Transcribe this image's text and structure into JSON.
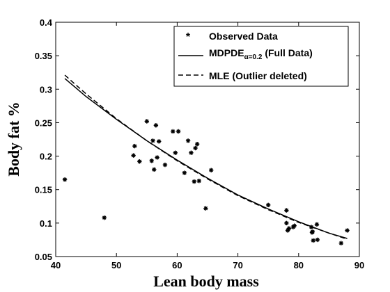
{
  "chart_data": {
    "type": "scatter",
    "xlabel": "Lean body mass",
    "ylabel": "Body fat %",
    "xlim": [
      40,
      90
    ],
    "ylim": [
      0.05,
      0.4
    ],
    "xticks": [
      "40",
      "50",
      "60",
      "70",
      "80",
      "90"
    ],
    "yticks": [
      "0.05",
      "0.1",
      "0.15",
      "0.2",
      "0.25",
      "0.3",
      "0.35",
      "0.4"
    ],
    "grid": false,
    "legend_position": "top-right",
    "legend": [
      {
        "label": "Observed Data",
        "marker": "star"
      },
      {
        "label": "MDPDE",
        "subscript": "α=0.2",
        "suffix": " (Full Data)",
        "line": "solid"
      },
      {
        "label": "MLE (Outlier deleted)",
        "line": "dashed"
      }
    ],
    "series": [
      {
        "name": "Observed Data",
        "kind": "scatter",
        "x": [
          41.5,
          48.0,
          52.8,
          53.0,
          53.8,
          55.0,
          55.8,
          56.0,
          56.2,
          56.5,
          56.7,
          57.0,
          58.0,
          59.3,
          59.7,
          60.2,
          61.2,
          61.8,
          62.3,
          62.8,
          63.0,
          63.3,
          63.6,
          64.7,
          65.6,
          75.0,
          78.0,
          78.0,
          78.2,
          78.4,
          79.1,
          79.3,
          82.1,
          82.2,
          82.3,
          82.4,
          83.0,
          83.1,
          87.0,
          88.0
        ],
        "y": [
          0.165,
          0.108,
          0.201,
          0.215,
          0.192,
          0.252,
          0.193,
          0.223,
          0.18,
          0.246,
          0.198,
          0.222,
          0.187,
          0.237,
          0.205,
          0.237,
          0.175,
          0.223,
          0.205,
          0.162,
          0.212,
          0.218,
          0.163,
          0.122,
          0.179,
          0.127,
          0.119,
          0.1,
          0.089,
          0.092,
          0.094,
          0.096,
          0.094,
          0.086,
          0.087,
          0.074,
          0.098,
          0.075,
          0.07,
          0.089
        ]
      },
      {
        "name": "MDPDE (Full Data)",
        "kind": "line",
        "style": "solid",
        "x": [
          41.5,
          45,
          50,
          55,
          60,
          65,
          70,
          75,
          80,
          85,
          88
        ],
        "y": [
          0.316,
          0.289,
          0.255,
          0.223,
          0.194,
          0.167,
          0.142,
          0.121,
          0.102,
          0.085,
          0.077
        ]
      },
      {
        "name": "MLE (Outlier deleted)",
        "kind": "line",
        "style": "dashed",
        "x": [
          41.5,
          45,
          50,
          55,
          60,
          65,
          70,
          75,
          80,
          85,
          88
        ],
        "y": [
          0.321,
          0.293,
          0.256,
          0.223,
          0.193,
          0.166,
          0.141,
          0.12,
          0.101,
          0.085,
          0.076
        ]
      }
    ]
  }
}
